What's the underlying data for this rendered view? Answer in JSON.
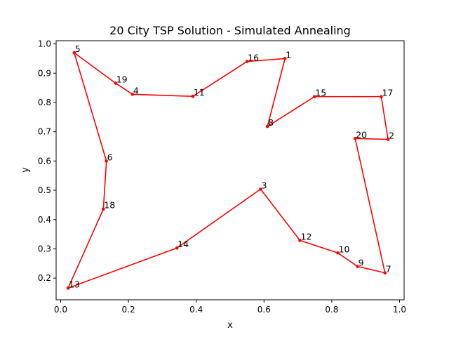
{
  "chart_data": {
    "type": "line",
    "title": "20 City TSP Solution - Simulated Annealing",
    "xlabel": "x",
    "ylabel": "y",
    "xlim": [
      -0.0134,
      1.0134
    ],
    "ylim": [
      0.126,
      1.011
    ],
    "xticks": [
      "0.0",
      "0.2",
      "0.4",
      "0.6",
      "0.8",
      "1.0"
    ],
    "yticks": [
      "0.2",
      "0.3",
      "0.4",
      "0.5",
      "0.6",
      "0.7",
      "0.8",
      "0.9",
      "1.0"
    ],
    "line_color": "#ff0000",
    "marker": "circle",
    "grid": false,
    "cities": [
      {
        "label": "5",
        "x": 0.04,
        "y": 0.97
      },
      {
        "label": "19",
        "x": 0.162,
        "y": 0.866
      },
      {
        "label": "4",
        "x": 0.212,
        "y": 0.828
      },
      {
        "label": "11",
        "x": 0.39,
        "y": 0.821
      },
      {
        "label": "16",
        "x": 0.55,
        "y": 0.94
      },
      {
        "label": "1",
        "x": 0.662,
        "y": 0.95
      },
      {
        "label": "8",
        "x": 0.61,
        "y": 0.718
      },
      {
        "label": "15",
        "x": 0.749,
        "y": 0.82
      },
      {
        "label": "17",
        "x": 0.946,
        "y": 0.82
      },
      {
        "label": "2",
        "x": 0.966,
        "y": 0.674
      },
      {
        "label": "20",
        "x": 0.869,
        "y": 0.677
      },
      {
        "label": "7",
        "x": 0.957,
        "y": 0.218
      },
      {
        "label": "9",
        "x": 0.876,
        "y": 0.24
      },
      {
        "label": "10",
        "x": 0.818,
        "y": 0.286
      },
      {
        "label": "12",
        "x": 0.706,
        "y": 0.329
      },
      {
        "label": "3",
        "x": 0.59,
        "y": 0.504
      },
      {
        "label": "14",
        "x": 0.343,
        "y": 0.303
      },
      {
        "label": "13",
        "x": 0.022,
        "y": 0.166
      },
      {
        "label": "18",
        "x": 0.126,
        "y": 0.436
      },
      {
        "label": "6",
        "x": 0.135,
        "y": 0.6
      }
    ]
  }
}
